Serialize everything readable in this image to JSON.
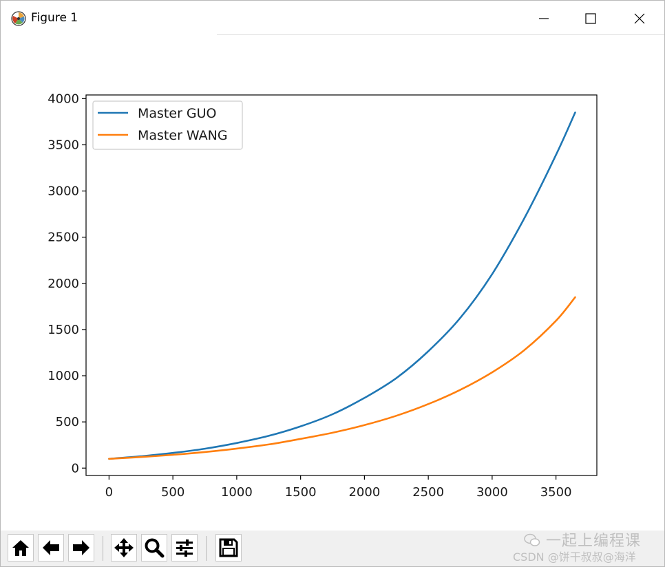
{
  "window": {
    "title": "Figure 1",
    "icon": "matplotlib-figure-icon",
    "controls": [
      "minimize-icon",
      "maximize-icon",
      "close-icon"
    ]
  },
  "chart_data": {
    "type": "line",
    "title": "",
    "xlabel": "",
    "ylabel": "",
    "xlim": [
      -180,
      3820
    ],
    "ylim": [
      -80,
      4040
    ],
    "x_ticks": [
      "0",
      "500",
      "1000",
      "1500",
      "2000",
      "2500",
      "3000",
      "3500"
    ],
    "y_ticks": [
      "0",
      "500",
      "1000",
      "1500",
      "2000",
      "2500",
      "3000",
      "3500",
      "4000"
    ],
    "legend_position": "upper-left",
    "grid": false,
    "x": [
      0,
      250,
      500,
      750,
      1000,
      1250,
      1500,
      1750,
      2000,
      2250,
      2500,
      2750,
      3000,
      3250,
      3500,
      3650
    ],
    "series": [
      {
        "name": "Master GUO",
        "color": "#1f77b4",
        "values": [
          100,
          128,
          164,
          210,
          272,
          349,
          452,
          583,
          760,
          975,
          1265,
          1625,
          2100,
          2700,
          3390,
          3850
        ]
      },
      {
        "name": "Master WANG",
        "color": "#ff7f0e",
        "values": [
          100,
          120,
          144,
          174,
          211,
          256,
          316,
          383,
          465,
          567,
          693,
          847,
          1037,
          1275,
          1595,
          1850
        ]
      }
    ]
  },
  "toolbar": {
    "buttons": [
      {
        "name": "home-button",
        "icon": "home-icon"
      },
      {
        "name": "back-button",
        "icon": "arrow-left-icon"
      },
      {
        "name": "forward-button",
        "icon": "arrow-right-icon"
      },
      {
        "name": "pan-button",
        "icon": "move-icon"
      },
      {
        "name": "zoom-button",
        "icon": "magnifier-icon"
      },
      {
        "name": "configure-subplots-button",
        "icon": "sliders-icon"
      },
      {
        "name": "save-button",
        "icon": "floppy-disk-icon"
      }
    ]
  },
  "watermark": {
    "line1": "一起上编程课",
    "line2": "CSDN @饼干叔叔@海洋"
  }
}
